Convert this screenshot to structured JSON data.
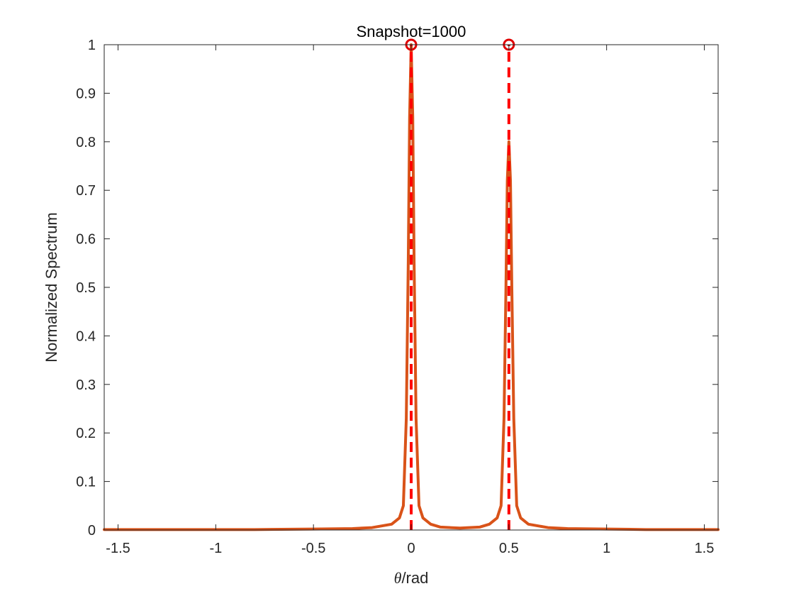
{
  "chart_data": {
    "type": "line",
    "title": "Snapshot=1000",
    "xlabel_symbol": "θ",
    "xlabel_unit": "/rad",
    "ylabel": "Normalized Spectrum",
    "xlim": [
      -1.5708,
      1.5708
    ],
    "ylim": [
      0,
      1
    ],
    "grid": false,
    "xticks": [
      -1.5,
      -1,
      -0.5,
      0,
      0.5,
      1,
      1.5
    ],
    "xtick_labels": [
      "-1.5",
      "-1",
      "-0.5",
      "0",
      "0.5",
      "1",
      "1.5"
    ],
    "yticks": [
      0,
      0.1,
      0.2,
      0.3,
      0.4,
      0.5,
      0.6,
      0.7,
      0.8,
      0.9,
      1
    ],
    "ytick_labels": [
      "0",
      "0.1",
      "0.2",
      "0.3",
      "0.4",
      "0.5",
      "0.6",
      "0.7",
      "0.8",
      "0.9",
      "1"
    ],
    "series": [
      {
        "color": "#d95319",
        "style": "solid",
        "x": [
          -1.5708,
          -1.2,
          -0.8,
          -0.5,
          -0.3,
          -0.2,
          -0.1,
          -0.06,
          -0.04,
          -0.025,
          -0.015,
          -0.008,
          0,
          0.008,
          0.015,
          0.025,
          0.04,
          0.06,
          0.1,
          0.15,
          0.25,
          0.35,
          0.4,
          0.44,
          0.46,
          0.475,
          0.485,
          0.492,
          0.5,
          0.508,
          0.515,
          0.525,
          0.54,
          0.56,
          0.6,
          0.7,
          0.8,
          1.0,
          1.2,
          1.5708
        ],
        "y": [
          0.001,
          0.001,
          0.001,
          0.002,
          0.003,
          0.005,
          0.012,
          0.025,
          0.05,
          0.23,
          0.55,
          0.85,
          1.0,
          0.85,
          0.55,
          0.23,
          0.05,
          0.025,
          0.012,
          0.006,
          0.004,
          0.006,
          0.012,
          0.025,
          0.05,
          0.23,
          0.5,
          0.72,
          0.8,
          0.72,
          0.5,
          0.23,
          0.05,
          0.025,
          0.012,
          0.005,
          0.003,
          0.002,
          0.001,
          0.001
        ]
      }
    ],
    "true_doa_lines": {
      "color": "#ff0000",
      "style": "dashed",
      "x": [
        0,
        0.5
      ]
    },
    "peak_markers": {
      "color": "#e00000",
      "marker": "circle",
      "x": [
        0,
        0.5
      ],
      "y": [
        1,
        1
      ]
    }
  }
}
